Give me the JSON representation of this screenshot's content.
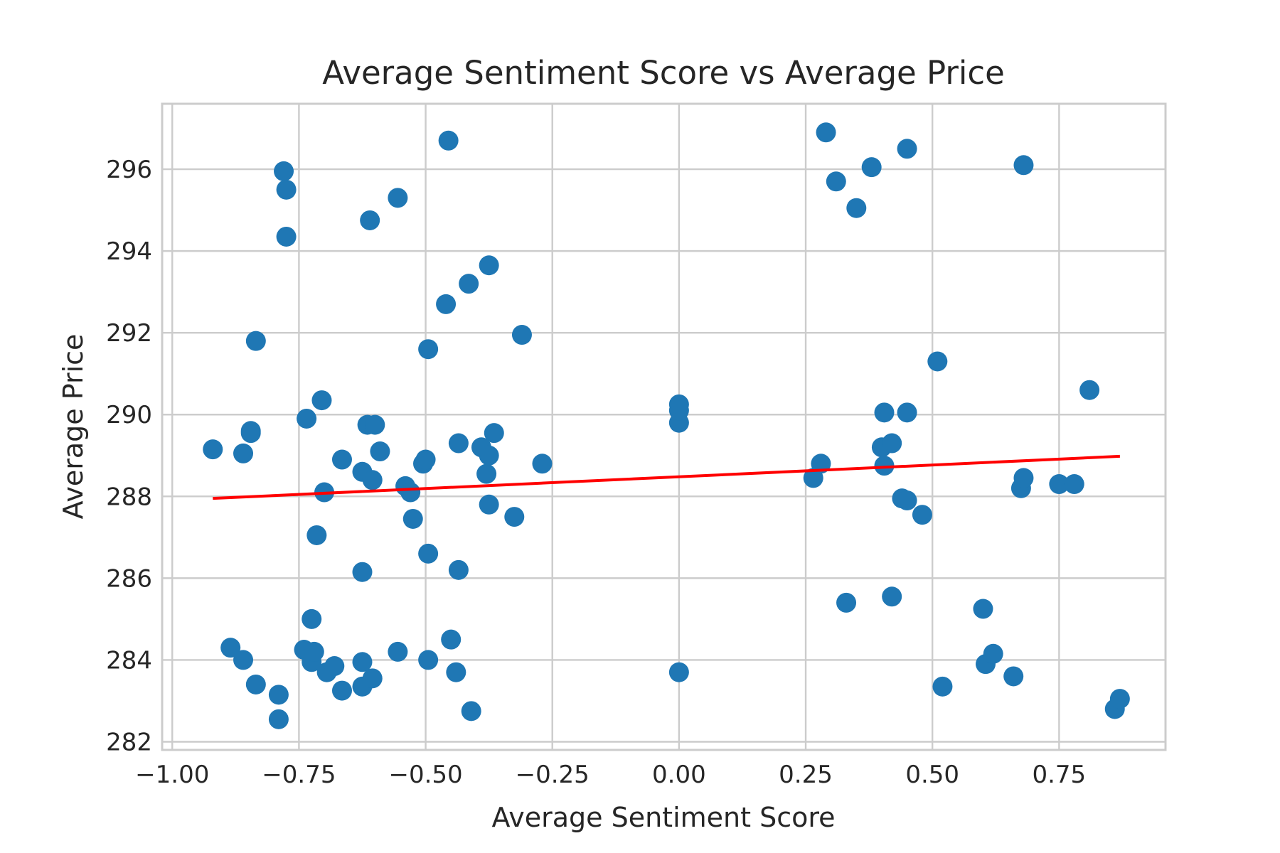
{
  "chart_data": {
    "type": "scatter",
    "title": "Average Sentiment Score vs Average Price",
    "xlabel": "Average Sentiment Score",
    "ylabel": "Average Price",
    "xlim": [
      -1.02,
      0.96
    ],
    "ylim": [
      281.8,
      297.6
    ],
    "x_ticks": [
      -1.0,
      -0.75,
      -0.5,
      -0.25,
      0.0,
      0.25,
      0.5,
      0.75
    ],
    "x_tick_labels": [
      "−1.00",
      "−0.75",
      "−0.50",
      "−0.25",
      "0.00",
      "0.25",
      "0.50",
      "0.75"
    ],
    "y_ticks": [
      282,
      284,
      286,
      288,
      290,
      292,
      294,
      296
    ],
    "y_tick_labels": [
      "282",
      "284",
      "286",
      "288",
      "290",
      "292",
      "294",
      "296"
    ],
    "grid": true,
    "marker_color": "#1f77b4",
    "trend_color": "#ff0000",
    "series": [
      {
        "points": [
          [
            -0.92,
            289.15
          ],
          [
            -0.885,
            284.3
          ],
          [
            -0.86,
            284.0
          ],
          [
            -0.86,
            289.05
          ],
          [
            -0.845,
            289.55
          ],
          [
            -0.845,
            289.6
          ],
          [
            -0.835,
            283.4
          ],
          [
            -0.835,
            291.8
          ],
          [
            -0.79,
            283.15
          ],
          [
            -0.79,
            282.55
          ],
          [
            -0.78,
            295.95
          ],
          [
            -0.775,
            295.5
          ],
          [
            -0.775,
            294.35
          ],
          [
            -0.74,
            284.25
          ],
          [
            -0.735,
            289.9
          ],
          [
            -0.725,
            285.0
          ],
          [
            -0.725,
            283.95
          ],
          [
            -0.72,
            284.2
          ],
          [
            -0.715,
            287.05
          ],
          [
            -0.705,
            290.35
          ],
          [
            -0.7,
            288.1
          ],
          [
            -0.695,
            283.7
          ],
          [
            -0.68,
            283.85
          ],
          [
            -0.665,
            283.25
          ],
          [
            -0.665,
            288.9
          ],
          [
            -0.625,
            283.95
          ],
          [
            -0.625,
            283.35
          ],
          [
            -0.625,
            288.6
          ],
          [
            -0.625,
            286.15
          ],
          [
            -0.615,
            289.75
          ],
          [
            -0.61,
            294.75
          ],
          [
            -0.605,
            288.4
          ],
          [
            -0.605,
            283.55
          ],
          [
            -0.6,
            289.75
          ],
          [
            -0.59,
            289.1
          ],
          [
            -0.555,
            284.2
          ],
          [
            -0.555,
            295.3
          ],
          [
            -0.54,
            288.25
          ],
          [
            -0.53,
            288.1
          ],
          [
            -0.525,
            287.45
          ],
          [
            -0.505,
            288.8
          ],
          [
            -0.5,
            288.9
          ],
          [
            -0.495,
            284.0
          ],
          [
            -0.495,
            286.6
          ],
          [
            -0.495,
            291.6
          ],
          [
            -0.46,
            292.7
          ],
          [
            -0.455,
            296.7
          ],
          [
            -0.45,
            284.5
          ],
          [
            -0.44,
            283.7
          ],
          [
            -0.435,
            289.3
          ],
          [
            -0.435,
            286.2
          ],
          [
            -0.415,
            293.2
          ],
          [
            -0.41,
            282.75
          ],
          [
            -0.39,
            289.2
          ],
          [
            -0.38,
            288.55
          ],
          [
            -0.375,
            293.65
          ],
          [
            -0.375,
            287.8
          ],
          [
            -0.375,
            289.0
          ],
          [
            -0.365,
            289.55
          ],
          [
            -0.325,
            287.5
          ],
          [
            -0.31,
            291.95
          ],
          [
            -0.27,
            288.8
          ],
          [
            0.0,
            283.7
          ],
          [
            0.0,
            289.8
          ],
          [
            0.0,
            290.1
          ],
          [
            0.0,
            290.25
          ],
          [
            0.265,
            288.45
          ],
          [
            0.28,
            288.8
          ],
          [
            0.29,
            296.9
          ],
          [
            0.31,
            295.7
          ],
          [
            0.33,
            285.4
          ],
          [
            0.35,
            295.05
          ],
          [
            0.38,
            296.05
          ],
          [
            0.4,
            289.2
          ],
          [
            0.405,
            288.75
          ],
          [
            0.405,
            290.05
          ],
          [
            0.42,
            289.3
          ],
          [
            0.42,
            285.55
          ],
          [
            0.44,
            287.95
          ],
          [
            0.45,
            287.9
          ],
          [
            0.45,
            290.05
          ],
          [
            0.45,
            296.5
          ],
          [
            0.48,
            287.55
          ],
          [
            0.51,
            291.3
          ],
          [
            0.52,
            283.35
          ],
          [
            0.6,
            285.25
          ],
          [
            0.605,
            283.9
          ],
          [
            0.62,
            284.15
          ],
          [
            0.66,
            283.6
          ],
          [
            0.675,
            288.2
          ],
          [
            0.68,
            288.45
          ],
          [
            0.68,
            296.1
          ],
          [
            0.75,
            288.3
          ],
          [
            0.78,
            288.3
          ],
          [
            0.81,
            290.6
          ],
          [
            0.86,
            282.8
          ],
          [
            0.87,
            283.05
          ]
        ]
      }
    ],
    "trend_line": {
      "x": [
        -0.92,
        0.87
      ],
      "y": [
        287.95,
        288.98
      ]
    }
  }
}
